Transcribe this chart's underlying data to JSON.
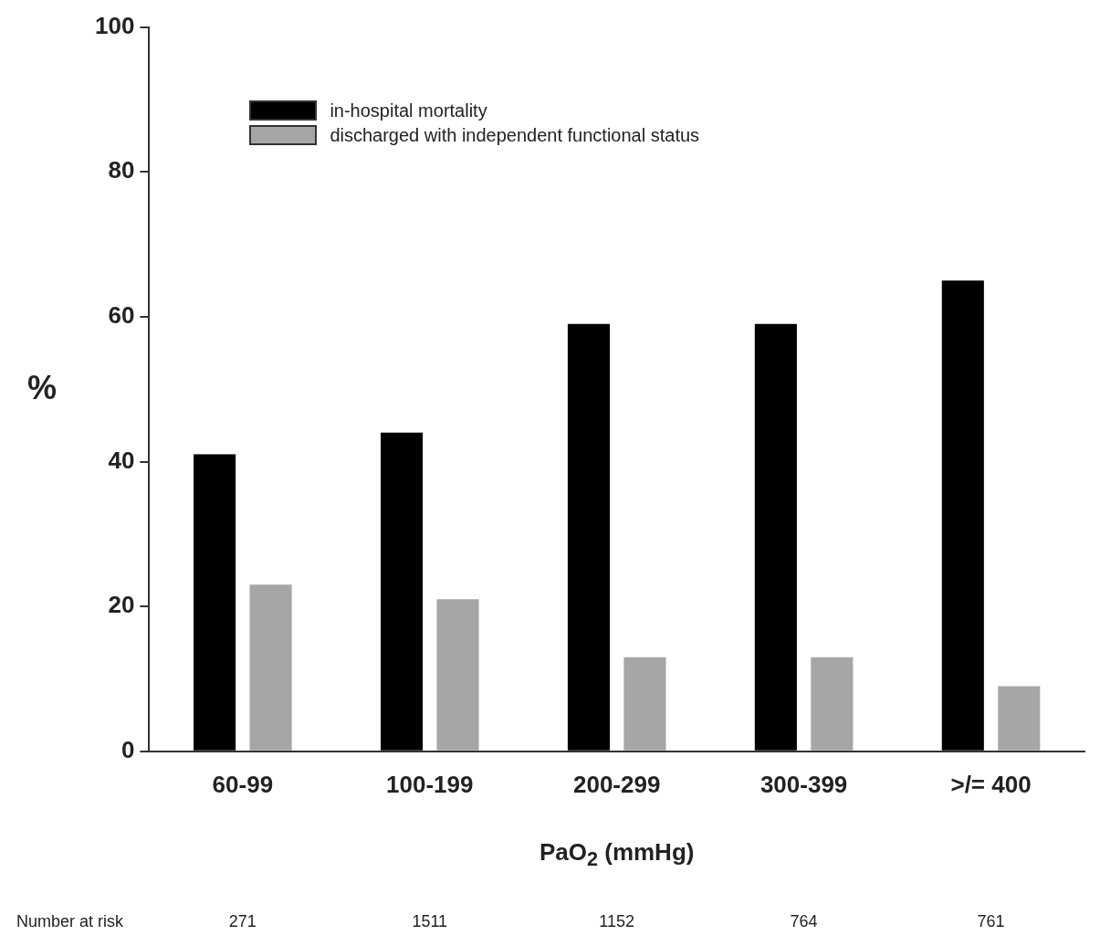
{
  "chart_data": {
    "type": "bar",
    "xlabel": "PaO$_{2}$ (mmHg)",
    "ylabel": "%",
    "categories": [
      "60-99",
      "100-199",
      "200-299",
      "300-399",
      ">/= 400"
    ],
    "series": [
      {
        "name": "in-hospital mortality",
        "color": "#000000",
        "values": [
          41,
          44,
          59,
          59,
          65
        ]
      },
      {
        "name": "discharged with independent functional status",
        "color": "#a6a6a6",
        "values": [
          23,
          21,
          13,
          13,
          9
        ]
      }
    ],
    "ylim": [
      0,
      100
    ],
    "yticks": [
      0,
      20,
      40,
      60,
      80,
      100
    ],
    "grid": false,
    "legend": "top left",
    "annotations": [
      "Number at risk",
      "271",
      "1511",
      "1152",
      "764",
      "761"
    ]
  }
}
